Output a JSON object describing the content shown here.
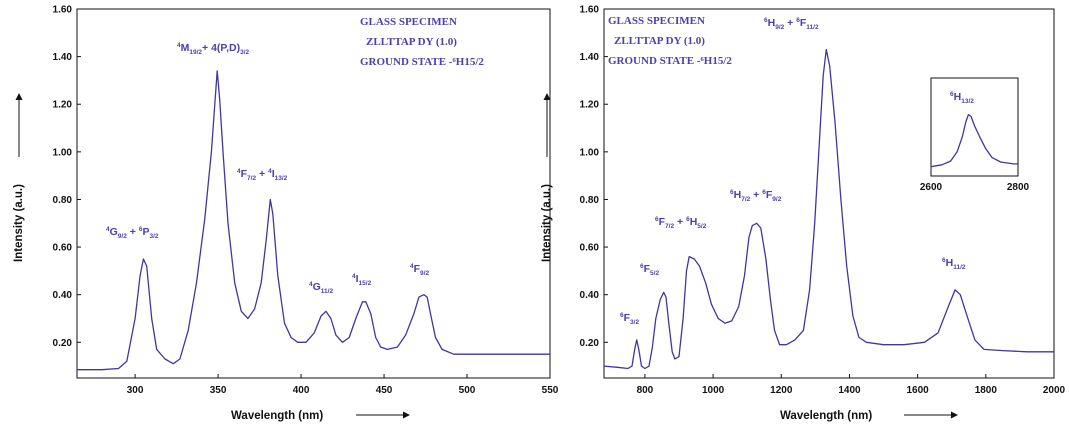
{
  "chart_data": [
    {
      "type": "line",
      "xlabel": "Wavelength (nm)",
      "ylabel": "Intensity (a.u.)",
      "xlim": [
        265,
        550
      ],
      "ylim": [
        0.05,
        1.6
      ],
      "xticks": [
        "300",
        "350",
        "400",
        "450",
        "500",
        "550"
      ],
      "yticks": [
        "0.20",
        "0.40",
        "0.60",
        "0.80",
        "1.00",
        "1.20",
        "1.40",
        "1.60"
      ],
      "annotation_lines": [
        "GLASS SPECIMEN",
        "ZLLTTAP DY (1.0)",
        "GROUND STATE -⁶H15/2"
      ],
      "peak_labels": [
        {
          "text": "⁴G9/2 + ⁶P3/2",
          "x": 306,
          "y": 0.57
        },
        {
          "text": "⁴M19/2+ 4(P,D)3/2",
          "x": 350,
          "y": 1.36
        },
        {
          "text": "⁴F7/2 + ⁴I13/2",
          "x": 382,
          "y": 0.82
        },
        {
          "text": "⁴G11/2",
          "x": 415,
          "y": 0.34
        },
        {
          "text": "⁴I15/2",
          "x": 438,
          "y": 0.38
        },
        {
          "text": "⁴F9/2",
          "x": 473,
          "y": 0.41
        }
      ],
      "series": [
        {
          "points": [
            [
              265,
              0.085
            ],
            [
              280,
              0.085
            ],
            [
              290,
              0.09
            ],
            [
              295,
              0.12
            ],
            [
              300,
              0.3
            ],
            [
              303,
              0.48
            ],
            [
              305,
              0.55
            ],
            [
              307,
              0.52
            ],
            [
              310,
              0.3
            ],
            [
              313,
              0.17
            ],
            [
              318,
              0.13
            ],
            [
              323,
              0.11
            ],
            [
              327,
              0.13
            ],
            [
              332,
              0.25
            ],
            [
              337,
              0.45
            ],
            [
              342,
              0.72
            ],
            [
              346,
              1.0
            ],
            [
              348,
              1.2
            ],
            [
              349.5,
              1.34
            ],
            [
              351,
              1.22
            ],
            [
              353,
              1.0
            ],
            [
              356,
              0.7
            ],
            [
              360,
              0.45
            ],
            [
              364,
              0.33
            ],
            [
              368,
              0.3
            ],
            [
              372,
              0.34
            ],
            [
              376,
              0.45
            ],
            [
              379,
              0.63
            ],
            [
              381.5,
              0.8
            ],
            [
              383,
              0.74
            ],
            [
              386,
              0.48
            ],
            [
              390,
              0.28
            ],
            [
              394,
              0.22
            ],
            [
              398,
              0.2
            ],
            [
              403,
              0.2
            ],
            [
              408,
              0.24
            ],
            [
              412,
              0.31
            ],
            [
              415,
              0.33
            ],
            [
              418,
              0.3
            ],
            [
              421,
              0.23
            ],
            [
              425,
              0.2
            ],
            [
              429,
              0.22
            ],
            [
              433,
              0.3
            ],
            [
              437,
              0.37
            ],
            [
              439,
              0.37
            ],
            [
              442,
              0.32
            ],
            [
              445,
              0.22
            ],
            [
              448,
              0.18
            ],
            [
              452,
              0.17
            ],
            [
              458,
              0.18
            ],
            [
              463,
              0.23
            ],
            [
              468,
              0.32
            ],
            [
              471,
              0.39
            ],
            [
              474,
              0.4
            ],
            [
              476,
              0.39
            ],
            [
              478,
              0.32
            ],
            [
              481,
              0.22
            ],
            [
              485,
              0.17
            ],
            [
              492,
              0.15
            ],
            [
              510,
              0.15
            ],
            [
              550,
              0.15
            ]
          ]
        }
      ]
    },
    {
      "type": "line",
      "xlabel": "Wavelength (nm)",
      "ylabel": "Intensity (a.u.)",
      "xlim": [
        680,
        2000
      ],
      "ylim": [
        0.05,
        1.6
      ],
      "xticks": [
        "800",
        "1000",
        "1200",
        "1400",
        "1600",
        "1800",
        "2000"
      ],
      "yticks": [
        "0.20",
        "0.40",
        "0.60",
        "0.80",
        "1.00",
        "1.20",
        "1.40",
        "1.60"
      ],
      "annotation_lines": [
        "GLASS SPECIMEN",
        "ZLLTTAP DY (1.0)",
        "GROUND STATE -⁶H15/2"
      ],
      "peak_labels": [
        {
          "text": "⁶F3/2",
          "x": 775,
          "y": 0.26
        },
        {
          "text": "⁶F5/2",
          "x": 853,
          "y": 0.46
        },
        {
          "text": "⁶F7/2 + ⁶H5/2",
          "x": 940,
          "y": 0.62
        },
        {
          "text": "⁶H7/2 + ⁶F9/2",
          "x": 1130,
          "y": 0.76
        },
        {
          "text": "⁶H9/2 + ⁶F11/2",
          "x": 1330,
          "y": 1.5
        },
        {
          "text": "⁶H11/2",
          "x": 1715,
          "y": 0.47
        }
      ],
      "series": [
        {
          "points": [
            [
              680,
              0.1
            ],
            [
              720,
              0.095
            ],
            [
              750,
              0.09
            ],
            [
              762,
              0.1
            ],
            [
              770,
              0.17
            ],
            [
              776,
              0.21
            ],
            [
              782,
              0.17
            ],
            [
              790,
              0.1
            ],
            [
              800,
              0.09
            ],
            [
              812,
              0.1
            ],
            [
              822,
              0.18
            ],
            [
              832,
              0.3
            ],
            [
              845,
              0.38
            ],
            [
              855,
              0.41
            ],
            [
              862,
              0.39
            ],
            [
              870,
              0.28
            ],
            [
              880,
              0.16
            ],
            [
              888,
              0.13
            ],
            [
              900,
              0.14
            ],
            [
              912,
              0.3
            ],
            [
              922,
              0.5
            ],
            [
              930,
              0.56
            ],
            [
              945,
              0.55
            ],
            [
              960,
              0.52
            ],
            [
              978,
              0.45
            ],
            [
              995,
              0.36
            ],
            [
              1015,
              0.3
            ],
            [
              1035,
              0.28
            ],
            [
              1055,
              0.29
            ],
            [
              1075,
              0.35
            ],
            [
              1092,
              0.48
            ],
            [
              1105,
              0.64
            ],
            [
              1115,
              0.69
            ],
            [
              1128,
              0.7
            ],
            [
              1140,
              0.68
            ],
            [
              1155,
              0.55
            ],
            [
              1168,
              0.38
            ],
            [
              1180,
              0.25
            ],
            [
              1195,
              0.19
            ],
            [
              1215,
              0.19
            ],
            [
              1240,
              0.21
            ],
            [
              1265,
              0.25
            ],
            [
              1283,
              0.42
            ],
            [
              1298,
              0.7
            ],
            [
              1312,
              1.05
            ],
            [
              1323,
              1.32
            ],
            [
              1332,
              1.43
            ],
            [
              1342,
              1.36
            ],
            [
              1358,
              1.12
            ],
            [
              1375,
              0.8
            ],
            [
              1392,
              0.52
            ],
            [
              1410,
              0.31
            ],
            [
              1428,
              0.22
            ],
            [
              1450,
              0.2
            ],
            [
              1500,
              0.19
            ],
            [
              1560,
              0.19
            ],
            [
              1620,
              0.2
            ],
            [
              1660,
              0.24
            ],
            [
              1690,
              0.35
            ],
            [
              1710,
              0.42
            ],
            [
              1725,
              0.4
            ],
            [
              1745,
              0.31
            ],
            [
              1768,
              0.21
            ],
            [
              1795,
              0.17
            ],
            [
              1850,
              0.165
            ],
            [
              1920,
              0.16
            ],
            [
              2000,
              0.16
            ]
          ]
        }
      ],
      "inset": {
        "xlim": [
          2600,
          2800
        ],
        "xticks": [
          "2600",
          "2800"
        ],
        "peak_label": "⁶H13/2",
        "points": [
          [
            2600,
            0.1
          ],
          [
            2625,
            0.12
          ],
          [
            2645,
            0.16
          ],
          [
            2660,
            0.26
          ],
          [
            2672,
            0.42
          ],
          [
            2680,
            0.58
          ],
          [
            2686,
            0.66
          ],
          [
            2692,
            0.64
          ],
          [
            2700,
            0.54
          ],
          [
            2712,
            0.42
          ],
          [
            2725,
            0.3
          ],
          [
            2740,
            0.2
          ],
          [
            2760,
            0.15
          ],
          [
            2790,
            0.13
          ],
          [
            2800,
            0.13
          ]
        ]
      }
    }
  ]
}
